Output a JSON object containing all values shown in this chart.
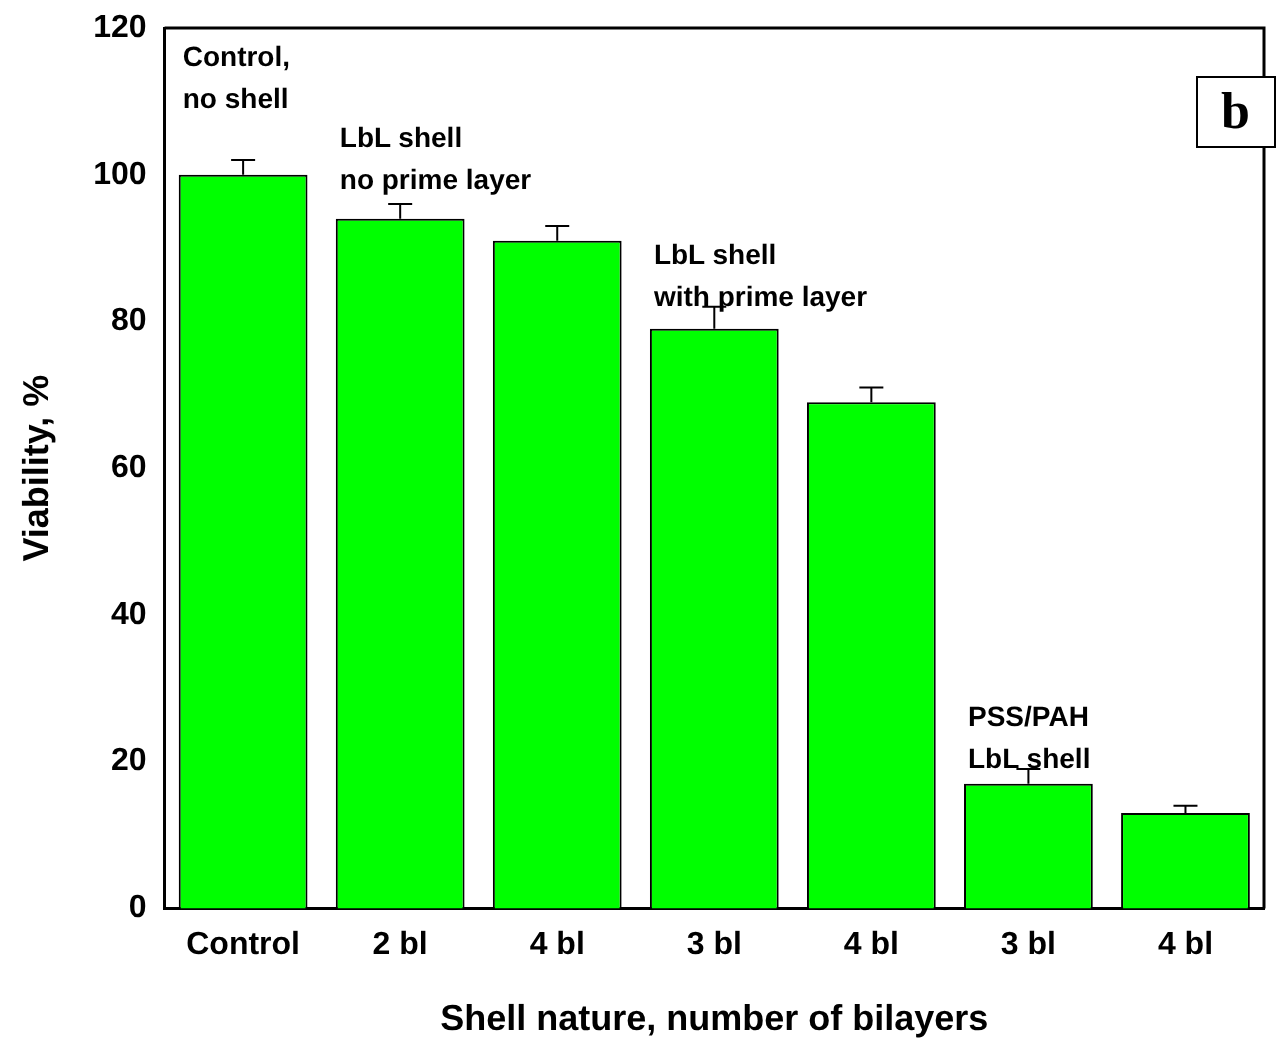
{
  "chart_data": {
    "type": "bar",
    "xlabel": "Shell nature, number of bilayers",
    "ylabel": "Viability, %",
    "categories": [
      "Control",
      "2 bl",
      "4 bl",
      "3 bl",
      "4 bl",
      "3 bl",
      "4 bl"
    ],
    "values": [
      100,
      94,
      91,
      79,
      69,
      17,
      13
    ],
    "errors": [
      2,
      2,
      2,
      3,
      2,
      2,
      1
    ],
    "color": "#00ff00",
    "ylim": [
      0,
      120
    ],
    "yticks": [
      0,
      20,
      40,
      60,
      80,
      100,
      120
    ],
    "grid": false,
    "legend": false,
    "annotations": [
      "Control,\nno shell",
      "LbL shell\nno prime layer",
      "LbL shell\nwith prime layer",
      "PSS/PAH\nLbL shell",
      "b"
    ]
  }
}
